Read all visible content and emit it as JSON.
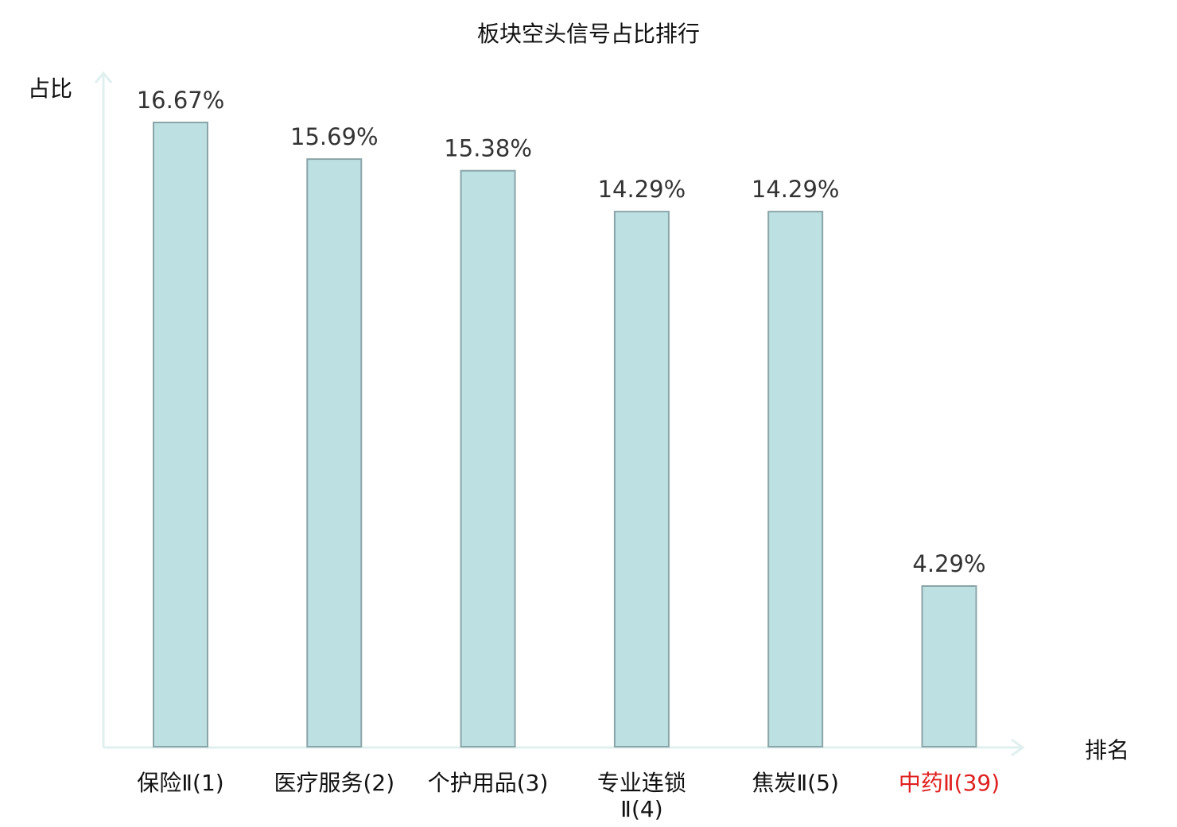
{
  "chart_data": {
    "type": "bar",
    "title": "板块空头信号占比排行",
    "ylabel": "占比",
    "xlabel": "排名",
    "categories": [
      "保险Ⅱ(1)",
      "医疗服务(2)",
      "个护用品(3)",
      "专业连锁Ⅱ(4)",
      "焦炭Ⅱ(5)",
      "中药Ⅱ(39)"
    ],
    "category_lines": [
      [
        "保险Ⅱ(1)"
      ],
      [
        "医疗服务(2)"
      ],
      [
        "个护用品(3)"
      ],
      [
        "专业连锁",
        "Ⅱ(4)"
      ],
      [
        "焦炭Ⅱ(5)"
      ],
      [
        "中药Ⅱ(39)"
      ]
    ],
    "values": [
      16.67,
      15.69,
      15.38,
      14.29,
      14.29,
      4.29
    ],
    "value_labels": [
      "16.67%",
      "15.69%",
      "15.38%",
      "14.29%",
      "14.29%",
      "4.29%"
    ],
    "highlight_index": 5,
    "ylim": [
      0,
      16.67
    ],
    "grid": false,
    "colors": {
      "bar_fill": "#bde0e3",
      "bar_stroke": "#8aa5a8",
      "axis": "#dff0ee",
      "highlight_text": "#e02020",
      "text": "#111111"
    }
  }
}
